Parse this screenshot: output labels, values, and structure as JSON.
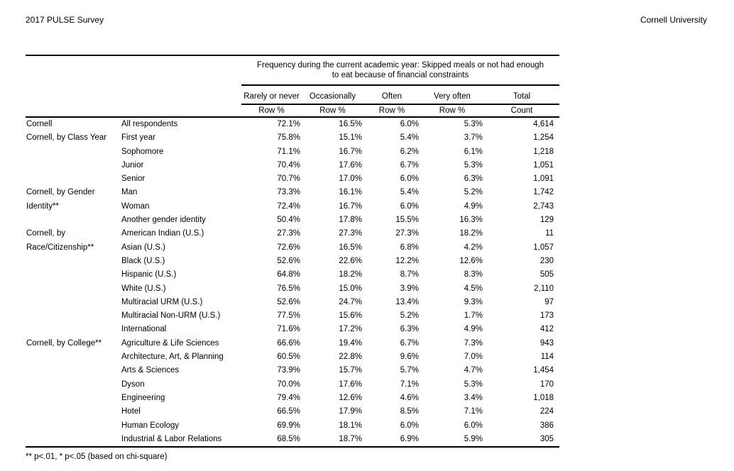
{
  "page": {
    "header_left": "2017 PULSE Survey",
    "header_right": "Cornell University",
    "footnote": "** p<.01, * p<.05 (based on chi-square)"
  },
  "colors": {
    "text": "#000000",
    "rules": "#000000",
    "background": "#ffffff"
  },
  "table": {
    "span_header": "Frequency during the current academic year: Skipped meals or not had enough\nto eat because of financial constraints",
    "columns": [
      {
        "label": "Rarely or never",
        "sub": "Row %"
      },
      {
        "label": "Occasionally",
        "sub": "Row %"
      },
      {
        "label": "Often",
        "sub": "Row %"
      },
      {
        "label": "Very often",
        "sub": "Row %"
      },
      {
        "label": "Total",
        "sub": "Count"
      }
    ],
    "groups": [
      {
        "label": "Cornell",
        "rows": [
          {
            "category": "All respondents",
            "values": [
              "72.1%",
              "16.5%",
              "6.0%",
              "5.3%",
              "4,614"
            ]
          }
        ]
      },
      {
        "label": "Cornell, by Class Year",
        "rows": [
          {
            "category": "First year",
            "values": [
              "75.8%",
              "15.1%",
              "5.4%",
              "3.7%",
              "1,254"
            ]
          },
          {
            "category": "Sophomore",
            "values": [
              "71.1%",
              "16.7%",
              "6.2%",
              "6.1%",
              "1,218"
            ]
          },
          {
            "category": "Junior",
            "values": [
              "70.4%",
              "17.6%",
              "6.7%",
              "5.3%",
              "1,051"
            ]
          },
          {
            "category": "Senior",
            "values": [
              "70.7%",
              "17.0%",
              "6.0%",
              "6.3%",
              "1,091"
            ]
          }
        ]
      },
      {
        "label": "Cornell, by Gender\nIdentity**",
        "rows": [
          {
            "category": "Man",
            "values": [
              "73.3%",
              "16.1%",
              "5.4%",
              "5.2%",
              "1,742"
            ]
          },
          {
            "category": "Woman",
            "values": [
              "72.4%",
              "16.7%",
              "6.0%",
              "4.9%",
              "2,743"
            ]
          },
          {
            "category": "Another gender identity",
            "values": [
              "50.4%",
              "17.8%",
              "15.5%",
              "16.3%",
              "129"
            ]
          }
        ]
      },
      {
        "label": "Cornell, by\nRace/Citizenship**",
        "rows": [
          {
            "category": "American Indian (U.S.)",
            "values": [
              "27.3%",
              "27.3%",
              "27.3%",
              "18.2%",
              "11"
            ]
          },
          {
            "category": "Asian (U.S.)",
            "values": [
              "72.6%",
              "16.5%",
              "6.8%",
              "4.2%",
              "1,057"
            ]
          },
          {
            "category": "Black (U.S.)",
            "values": [
              "52.6%",
              "22.6%",
              "12.2%",
              "12.6%",
              "230"
            ]
          },
          {
            "category": "Hispanic (U.S.)",
            "values": [
              "64.8%",
              "18.2%",
              "8.7%",
              "8.3%",
              "505"
            ]
          },
          {
            "category": "White (U.S.)",
            "values": [
              "76.5%",
              "15.0%",
              "3.9%",
              "4.5%",
              "2,110"
            ]
          },
          {
            "category": "Multiracial URM (U.S.)",
            "values": [
              "52.6%",
              "24.7%",
              "13.4%",
              "9.3%",
              "97"
            ]
          },
          {
            "category": "Multiracial Non-URM (U.S.)",
            "values": [
              "77.5%",
              "15.6%",
              "5.2%",
              "1.7%",
              "173"
            ]
          },
          {
            "category": "International",
            "values": [
              "71.6%",
              "17.2%",
              "6.3%",
              "4.9%",
              "412"
            ]
          }
        ]
      },
      {
        "label": "Cornell, by College**",
        "rows": [
          {
            "category": "Agriculture & Life Sciences",
            "values": [
              "66.6%",
              "19.4%",
              "6.7%",
              "7.3%",
              "943"
            ]
          },
          {
            "category": "Architecture, Art, & Planning",
            "values": [
              "60.5%",
              "22.8%",
              "9.6%",
              "7.0%",
              "114"
            ]
          },
          {
            "category": "Arts & Sciences",
            "values": [
              "73.9%",
              "15.7%",
              "5.7%",
              "4.7%",
              "1,454"
            ]
          },
          {
            "category": "Dyson",
            "values": [
              "70.0%",
              "17.6%",
              "7.1%",
              "5.3%",
              "170"
            ]
          },
          {
            "category": "Engineering",
            "values": [
              "79.4%",
              "12.6%",
              "4.6%",
              "3.4%",
              "1,018"
            ]
          },
          {
            "category": "Hotel",
            "values": [
              "66.5%",
              "17.9%",
              "8.5%",
              "7.1%",
              "224"
            ]
          },
          {
            "category": "Human Ecology",
            "values": [
              "69.9%",
              "18.1%",
              "6.0%",
              "6.0%",
              "386"
            ]
          },
          {
            "category": "Industrial & Labor Relations",
            "values": [
              "68.5%",
              "18.7%",
              "6.9%",
              "5.9%",
              "305"
            ]
          }
        ]
      }
    ]
  }
}
